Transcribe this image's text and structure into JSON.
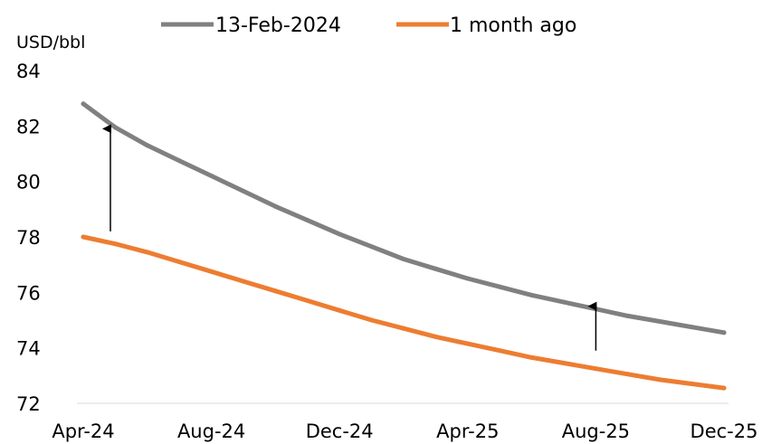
{
  "chart_data": {
    "type": "line",
    "ylabel": "USD/bbl",
    "ylim": [
      72,
      84
    ],
    "yticks": [
      72,
      74,
      76,
      78,
      80,
      82,
      84
    ],
    "x_tick_labels": [
      "Apr-24",
      "Aug-24",
      "Dec-24",
      "Apr-25",
      "Aug-25",
      "Dec-25"
    ],
    "x": [
      "Apr-24",
      "May-24",
      "Jun-24",
      "Jul-24",
      "Aug-24",
      "Sep-24",
      "Oct-24",
      "Nov-24",
      "Dec-24",
      "Jan-25",
      "Feb-25",
      "Mar-25",
      "Apr-25",
      "May-25",
      "Jun-25",
      "Jul-25",
      "Aug-25",
      "Sep-25",
      "Oct-25",
      "Nov-25",
      "Dec-25"
    ],
    "series": [
      {
        "name": "13-Feb-2024",
        "color": "#808080",
        "values": [
          82.8,
          81.95,
          81.3,
          80.75,
          80.2,
          79.65,
          79.1,
          78.6,
          78.1,
          77.65,
          77.2,
          76.85,
          76.5,
          76.2,
          75.9,
          75.65,
          75.4,
          75.15,
          74.95,
          74.75,
          74.55
        ]
      },
      {
        "name": "1 month ago",
        "color": "#ED7D31",
        "values": [
          78.0,
          77.75,
          77.45,
          77.1,
          76.75,
          76.4,
          76.05,
          75.7,
          75.35,
          75.0,
          74.7,
          74.4,
          74.15,
          73.9,
          73.65,
          73.45,
          73.25,
          73.05,
          72.85,
          72.7,
          72.55
        ]
      }
    ],
    "annotations": [
      {
        "type": "arrow",
        "x": "Apr-24",
        "from": 78.2,
        "to": 81.9
      },
      {
        "type": "arrow",
        "x": "Aug-25",
        "from": 73.9,
        "to": 75.5
      }
    ],
    "legend_position": "top",
    "grid": false
  }
}
